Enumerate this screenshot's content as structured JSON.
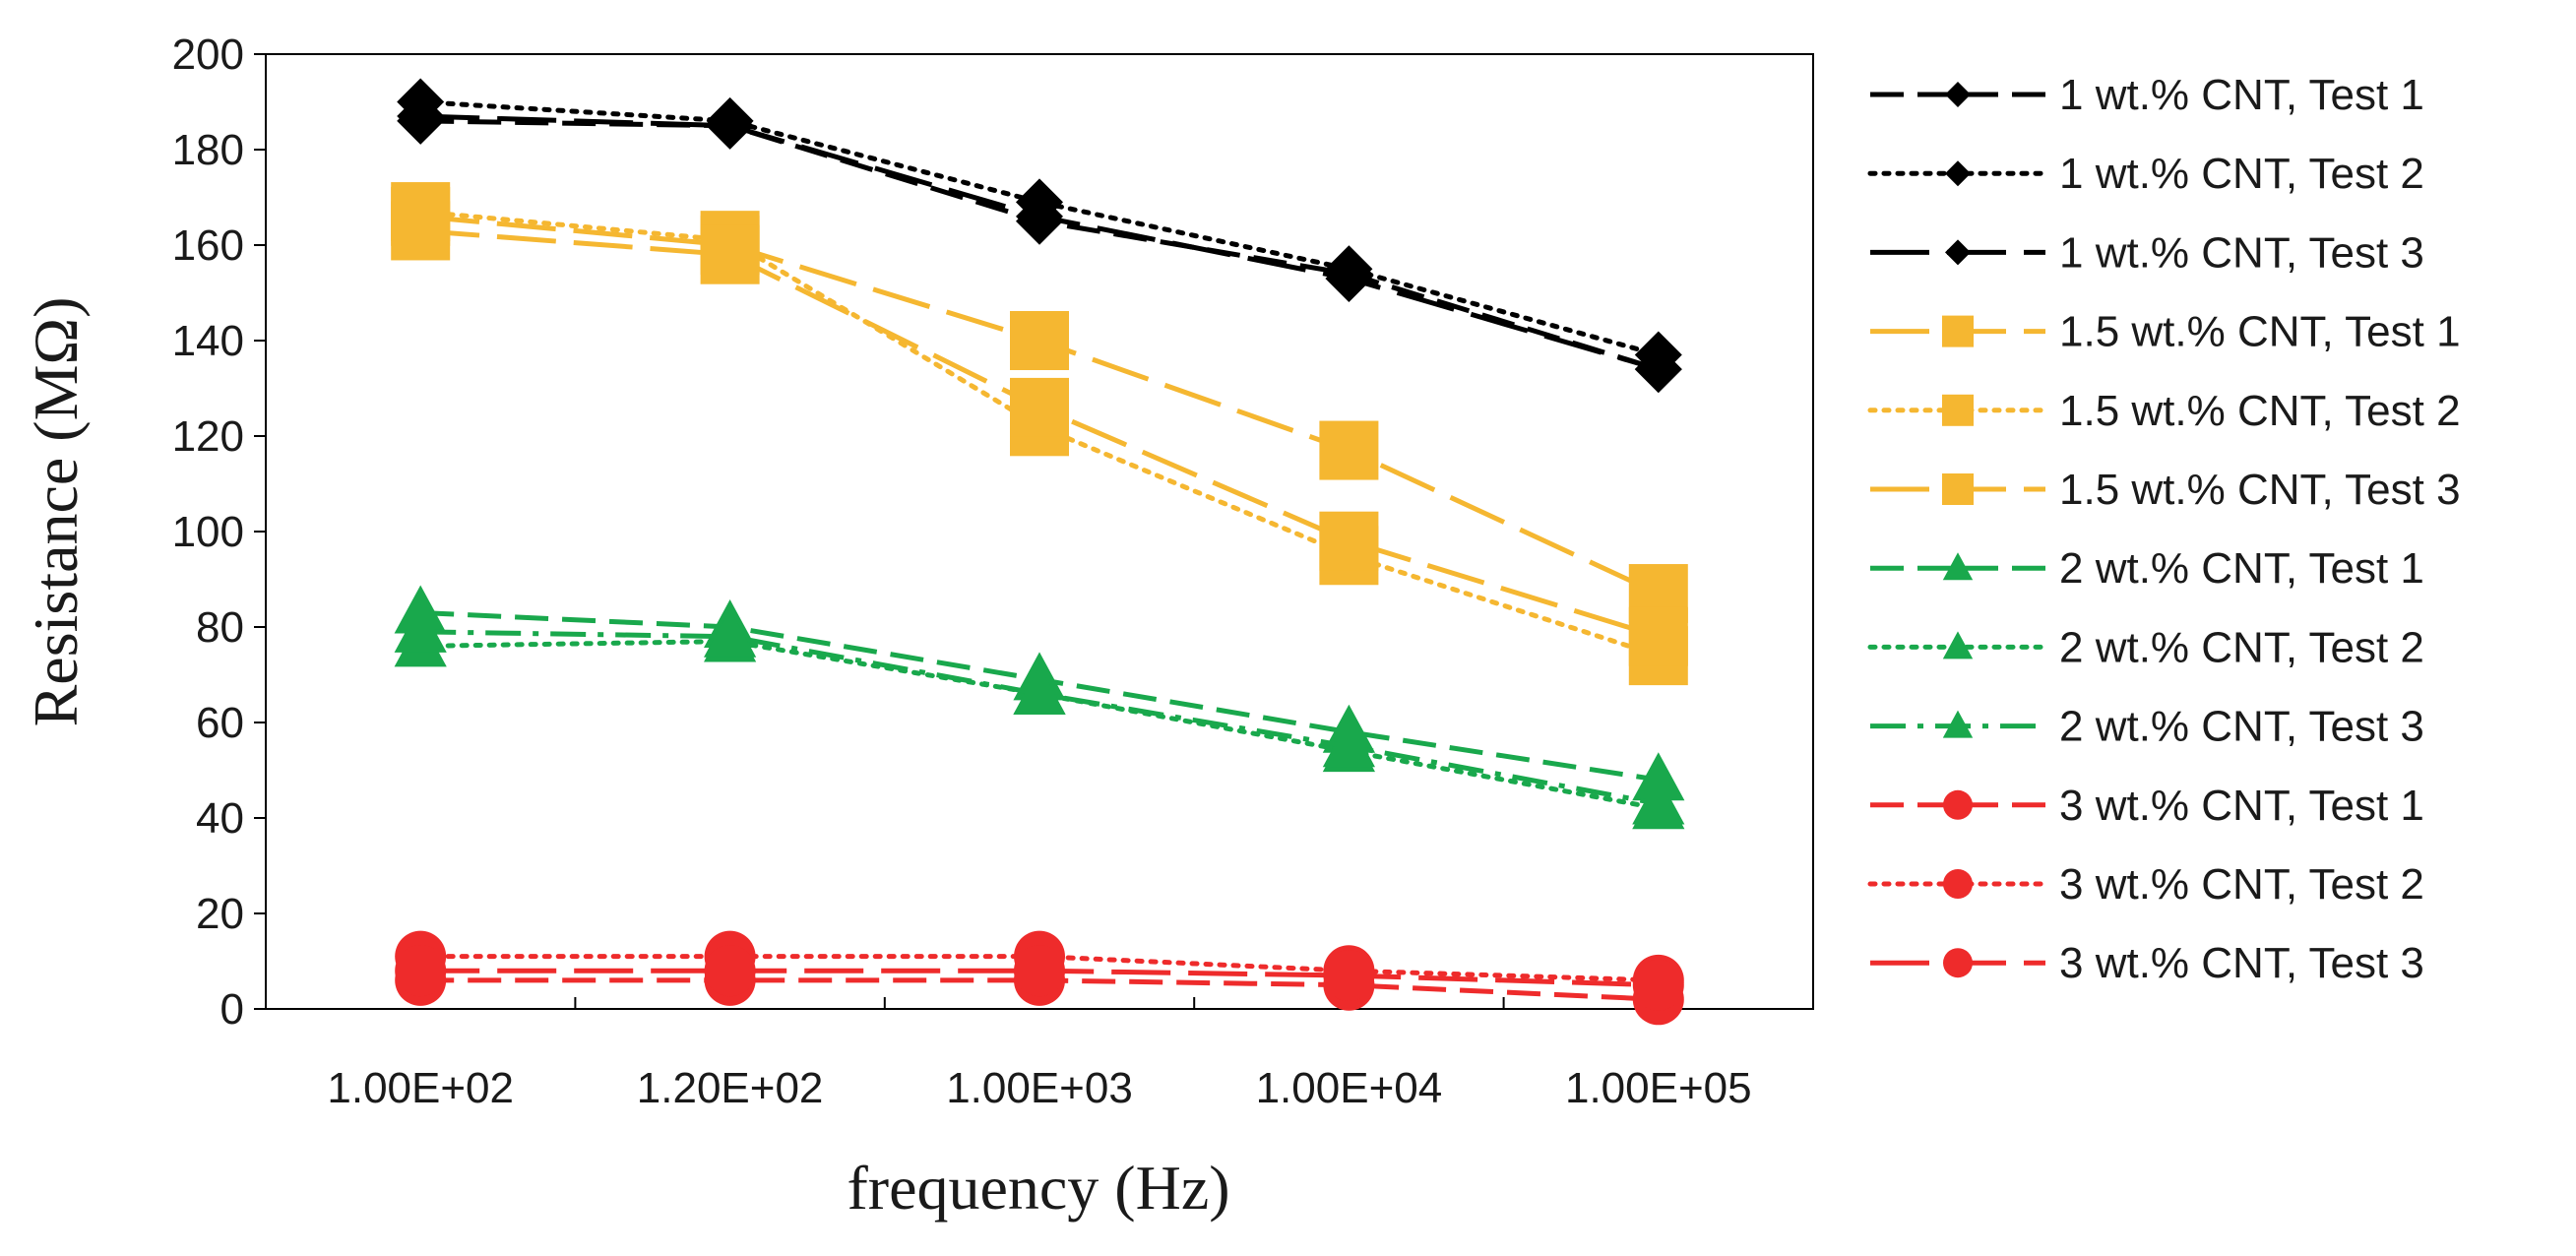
{
  "chart_data": {
    "type": "line",
    "title": "",
    "xlabel": "frequency (Hz)",
    "ylabel": "Resistance (MΩ)",
    "categories": [
      "1.00E+02",
      "1.20E+02",
      "1.00E+03",
      "1.00E+04",
      "1.00E+05"
    ],
    "ylim": [
      0,
      200
    ],
    "yticks": [
      "0",
      "20",
      "40",
      "60",
      "80",
      "100",
      "120",
      "140",
      "160",
      "180",
      "200"
    ],
    "grid": false,
    "legend_position": "right",
    "series": [
      {
        "name": "1 wt.% CNT, Test 1",
        "values": [
          186,
          185,
          165,
          154,
          134
        ],
        "color": "#000000",
        "dash": "dashed",
        "marker": "diamond"
      },
      {
        "name": "1 wt.% CNT, Test 2",
        "values": [
          190,
          186,
          169,
          155,
          137
        ],
        "color": "#000000",
        "dash": "dotted",
        "marker": "diamond"
      },
      {
        "name": "1 wt.% CNT, Test 3",
        "values": [
          187,
          185,
          166,
          153,
          134
        ],
        "color": "#000000",
        "dash": "long-dash",
        "marker": "diamond"
      },
      {
        "name": "1.5 wt.% CNT, Test 1",
        "values": [
          166,
          160,
          140,
          117,
          87
        ],
        "color": "#f5b731",
        "dash": "long-dash",
        "marker": "square"
      },
      {
        "name": "1.5 wt.% CNT, Test 2",
        "values": [
          167,
          161,
          122,
          95,
          74
        ],
        "color": "#f5b731",
        "dash": "dotted",
        "marker": "square"
      },
      {
        "name": "1.5 wt.% CNT, Test 3",
        "values": [
          163,
          158,
          126,
          98,
          78
        ],
        "color": "#f5b731",
        "dash": "long-dash",
        "marker": "square"
      },
      {
        "name": "2 wt.% CNT, Test 1",
        "values": [
          83,
          80,
          69,
          58,
          48
        ],
        "color": "#19a84c",
        "dash": "dashed",
        "marker": "triangle"
      },
      {
        "name": "2 wt.% CNT, Test 2",
        "values": [
          76,
          77,
          66,
          54,
          42
        ],
        "color": "#19a84c",
        "dash": "dotted",
        "marker": "triangle"
      },
      {
        "name": "2 wt.% CNT, Test 3",
        "values": [
          79,
          78,
          66,
          55,
          43
        ],
        "color": "#19a84c",
        "dash": "dash-dot",
        "marker": "triangle"
      },
      {
        "name": "3 wt.% CNT, Test 1",
        "values": [
          6,
          6,
          6,
          5,
          2
        ],
        "color": "#ee2b2b",
        "dash": "dashed",
        "marker": "circle"
      },
      {
        "name": "3 wt.% CNT, Test 2",
        "values": [
          11,
          11,
          11,
          8,
          6
        ],
        "color": "#ee2b2b",
        "dash": "dotted",
        "marker": "circle"
      },
      {
        "name": "3 wt.% CNT, Test 3",
        "values": [
          8,
          8,
          8,
          7,
          5
        ],
        "color": "#ee2b2b",
        "dash": "long-dash",
        "marker": "circle"
      }
    ]
  }
}
